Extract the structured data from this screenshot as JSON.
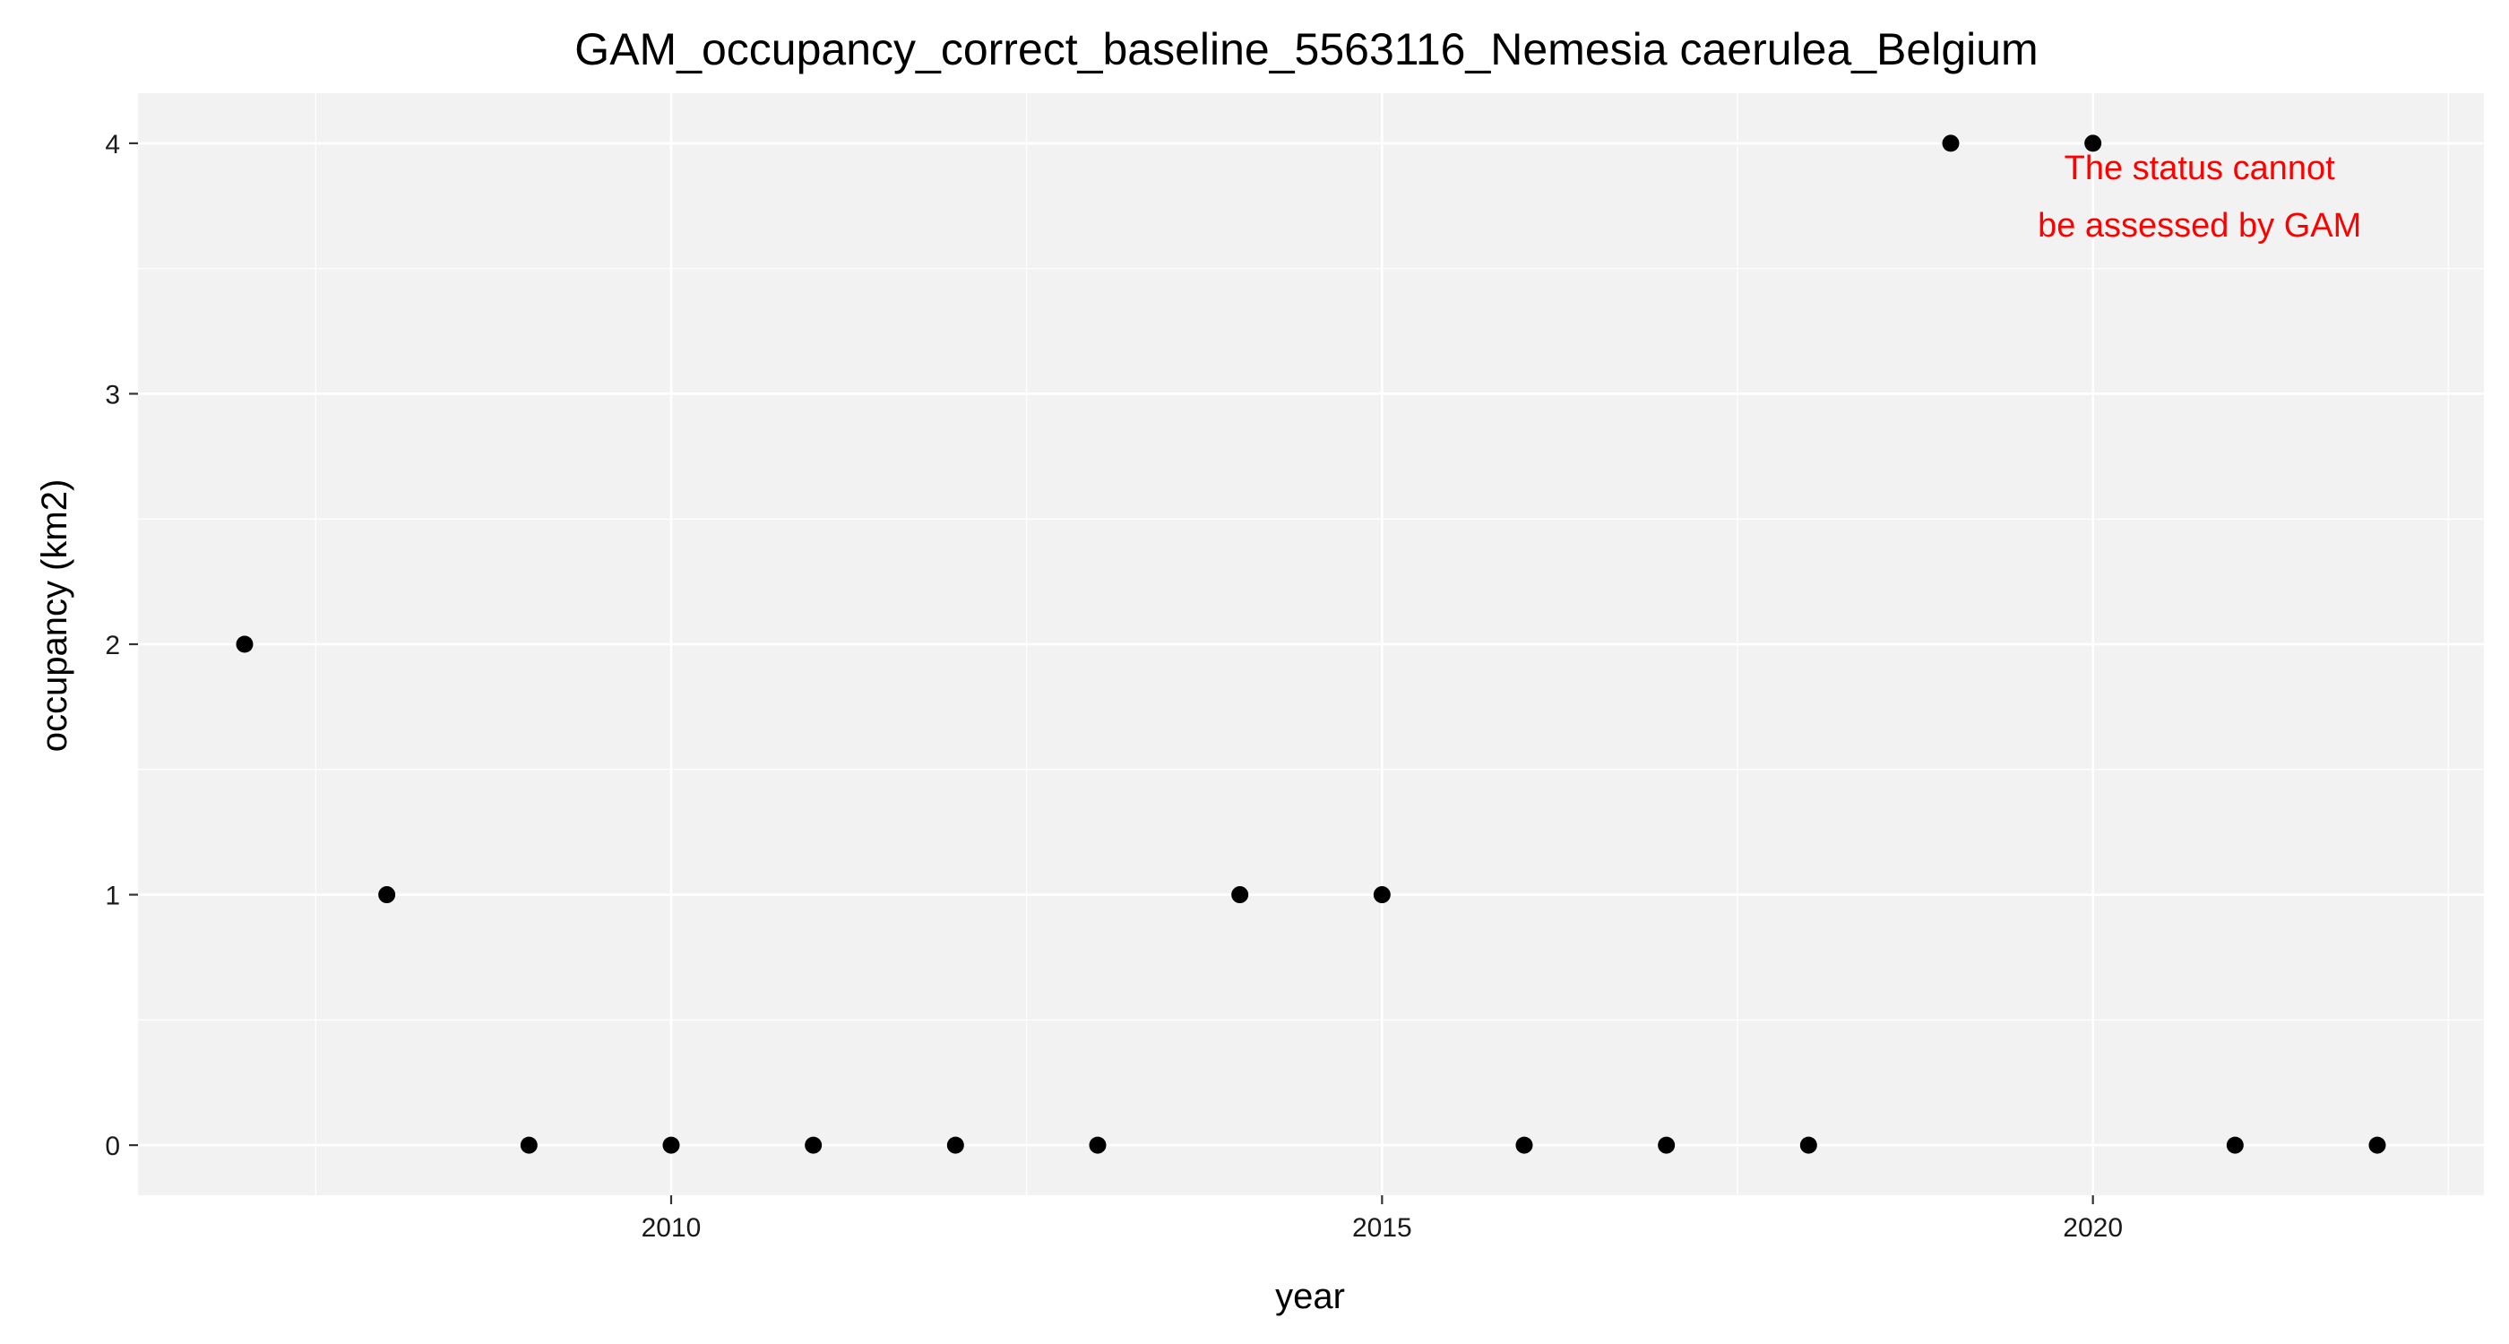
{
  "chart_data": {
    "type": "scatter",
    "title": "GAM_occupancy_correct_baseline_5563116_Nemesia caerulea_Belgium",
    "xlabel": "year",
    "ylabel": "occupancy (km2)",
    "x": [
      2007,
      2008,
      2009,
      2010,
      2011,
      2012,
      2013,
      2014,
      2015,
      2016,
      2017,
      2018,
      2019,
      2020,
      2021,
      2022
    ],
    "y": [
      2,
      1,
      0,
      0,
      0,
      0,
      0,
      1,
      1,
      0,
      0,
      0,
      4,
      4,
      0,
      0
    ],
    "xlim": [
      2006.25,
      2022.75
    ],
    "ylim": [
      -0.2,
      4.2
    ],
    "x_ticks": [
      2010,
      2015,
      2020
    ],
    "x_tick_labels": [
      "2010",
      "2015",
      "2020"
    ],
    "y_ticks": [
      0,
      1,
      2,
      3,
      4
    ],
    "y_tick_labels": [
      "0",
      "1",
      "2",
      "3",
      "4"
    ],
    "grid": true,
    "point_color": "#000000",
    "panel_background": "#f2f2f2",
    "grid_color": "#ffffff",
    "annotation": {
      "lines": [
        "The status cannot",
        "be assessed by GAM"
      ],
      "color": "#ff0000",
      "x": 2020.75,
      "y": 3.95
    }
  }
}
